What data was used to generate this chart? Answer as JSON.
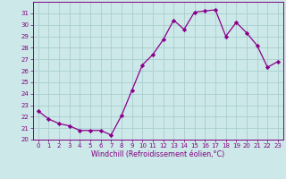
{
  "x": [
    0,
    1,
    2,
    3,
    4,
    5,
    6,
    7,
    8,
    9,
    10,
    11,
    12,
    13,
    14,
    15,
    16,
    17,
    18,
    19,
    20,
    21,
    22,
    23
  ],
  "y": [
    22.5,
    21.8,
    21.4,
    21.2,
    20.8,
    20.8,
    20.8,
    20.4,
    22.1,
    24.3,
    26.5,
    27.4,
    28.7,
    30.4,
    29.6,
    31.1,
    31.2,
    31.3,
    29.0,
    30.2,
    29.3,
    28.2,
    26.3,
    26.8
  ],
  "line_color": "#8B008B",
  "marker": "D",
  "marker_size": 2.2,
  "bg_color": "#cce8e8",
  "grid_color": "#aacece",
  "xlabel": "Windchill (Refroidissement éolien,°C)",
  "ylim": [
    20,
    32
  ],
  "xlim_min": -0.5,
  "xlim_max": 23.5,
  "yticks": [
    20,
    21,
    22,
    23,
    24,
    25,
    26,
    27,
    28,
    29,
    30,
    31
  ],
  "xticks": [
    0,
    1,
    2,
    3,
    4,
    5,
    6,
    7,
    8,
    9,
    10,
    11,
    12,
    13,
    14,
    15,
    16,
    17,
    18,
    19,
    20,
    21,
    22,
    23
  ],
  "xtick_labels": [
    "0",
    "1",
    "2",
    "3",
    "4",
    "5",
    "6",
    "7",
    "8",
    "9",
    "10",
    "11",
    "12",
    "13",
    "14",
    "15",
    "16",
    "17",
    "18",
    "19",
    "20",
    "21",
    "22",
    "23"
  ],
  "axis_color": "#800080",
  "tick_color": "#800080",
  "tick_fontsize": 5.0,
  "xlabel_fontsize": 5.8,
  "linewidth": 0.9
}
